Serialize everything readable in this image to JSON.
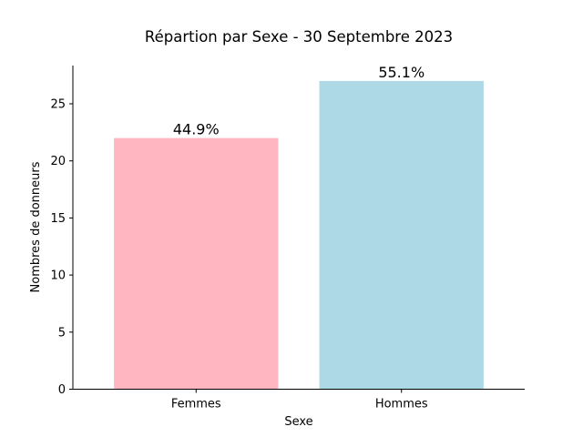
{
  "chart_data": {
    "type": "bar",
    "title": "Répartion par Sexe - 30 Septembre 2023",
    "xlabel": "Sexe",
    "ylabel": "Nombres de donneurs",
    "categories": [
      "Femmes",
      "Hommes"
    ],
    "values": [
      22,
      27
    ],
    "data_labels": [
      "44.9%",
      "55.1%"
    ],
    "colors": [
      "#ffb6c1",
      "#add8e6"
    ],
    "ylim": [
      0,
      28.35
    ],
    "yticks": [
      0,
      5,
      10,
      15,
      20,
      25
    ],
    "grid": false
  }
}
